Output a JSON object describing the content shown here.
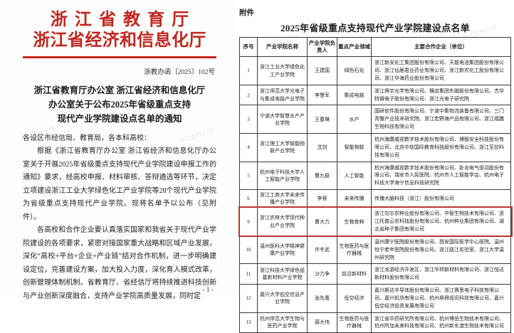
{
  "colors": {
    "header_red": "#c2271e",
    "highlight_box_red": "#bd342c"
  },
  "watermark": {
    "text": "浙江农林大学"
  },
  "left_page": {
    "header_line1": "浙江省教育厅",
    "header_line2": "浙江省经济和信息化厅",
    "doc_number": "浙教办函〔2025〕102号",
    "title_lines": [
      "浙江省教育厅办公室 浙江省经济和信息化厅",
      "办公室关于公布2025年省级重点支持",
      "现代产业学院建设点名单的通知"
    ],
    "salutation": "各设区市经信局、教育局，各本科高校：",
    "paragraphs": [
      "根据《浙江省教育厅办公室 浙江省经济和信息化厅办公室关于开展2025年省级重点支持现代产业学院建设申报工作的通知》要求，经高校申报、材料审核、答辩遴选等环节，决定立项建设浙江工业大学绿色化工产业学院等28个现代产业学院为省级重点支持现代产业学院。现将名单予以公布（见附件）。",
      "各高校和合作企业要认真落实国家和我省关于现代产业学院建设的各项要求，紧密对接国家重大战略和区域产业发展，深化“高校+平台+企业+产业链”结对合作机制，进一步明确建设定位，完善建设方案，加大投入力度，深化育人模式改革，创新管理体制机制。省教育厅、省经信厅将持续推进科技创新与产业创新深度融合，支持产业学院高质量发展，同时定"
    ],
    "page_number": "- 1 -"
  },
  "right_page": {
    "attachment_label": "附件",
    "table_title": "2025年省级重点支持现代产业学院建设点名单",
    "columns": [
      "序号",
      "产业学院名称",
      "产业学院负责人",
      "重点产业领域",
      "主要合作企业（单位）"
    ],
    "rows": [
      {
        "no": "1",
        "college": "浙江工业大学绿色化工产业学院",
        "leader": "王建国",
        "field": "绿色石化",
        "partners": "浙江新安化工集团股份有限公司、天能电池集团股份有限公司、浙江仙居君业药业有限公司、浙江新农化工股份有限公司、浙江华海药业股份有限公司",
        "highlight": false
      },
      {
        "no": "2",
        "college": "浙江师范大学光电子与集成电路产业学院",
        "leader": "李慧军",
        "field": "集成电路",
        "partners": "浙江舜宇光学有限公司、横店集团东磁股份有限公司、杰华特微电子股份有限公司、浙江光电子研究院",
        "highlight": false
      },
      {
        "no": "3",
        "college": "宁波大学智慧水产产业学院",
        "leader": "王春琳",
        "field": "水产",
        "partners": "国研软件股份有限公司、宁波中集物流装备有限公司、三门青蟹产业技术研究院、浙江宏野海产品有限公司、浙江福膳生物科技有限公司",
        "highlight": false
      },
      {
        "no": "4",
        "college": "浙江理工大学智能物联产业学院",
        "leader": "沈剑",
        "field": "智能物联",
        "partners": "杭州海康威视数字技术股份有限公司、博智安全科技股份有限公司、北京中软国际教育科技股份有限公司、浙江至控科技有限公司",
        "highlight": false
      },
      {
        "no": "5",
        "college": "杭州电子科技大学人工智能产业学院",
        "leader": "曹九稳",
        "field": "人工智能",
        "partners": "杭州海康威视数字技术股份有限公司、卧龙电气驱动股份有限公司、瑞安市人民医院、杭州市人工智能学会、杭州电子科技大学海宁信息科技研究院",
        "highlight": false
      },
      {
        "no": "6",
        "college": "浙江工商大学未来传播产业学院",
        "leader": "李蓉",
        "field": "未来传播",
        "partners": "传播大脑科技（浙江）股份有限公司",
        "highlight": false
      },
      {
        "no": "9",
        "college": "浙江农林大学现代种业产业学院",
        "leader": "曹大力",
        "field": "生物育种",
        "partners": "浙江勿忘农种业股份有限公司、华智生物技术有限公司、浙江托普云农科技股份有限公司、杭州种业集团有限公司、湖北省种子集团有限公司",
        "highlight": true
      },
      {
        "no": "10",
        "college": "温州医科大学精神健康产业学院",
        "leader": "许冬武",
        "field": "生物医药与医疗器械",
        "partners": "温州康宁医院股份有限公司、西安国际医学中心医院、温州怡宁老年医院股份有限公司、浙江瓯江实验室、浙江大学温州研究院",
        "highlight": false
      },
      {
        "no": "11",
        "college": "浙江科技大学绿色纸基新材料产业学院",
        "leader": "沙力争",
        "field": "前沿新材料",
        "partners": "浙江龙游经济开发区、浙江华邦新材料有限公司、浙江恒达新材料股份有限公司",
        "highlight": false
      },
      {
        "no": "12",
        "college": "嘉兴大学低空信息产业学院",
        "leader": "张先凰",
        "field": "低空经济",
        "partners": "嘉兴斯达半导体股份有限公司、浙江赛思电子科技有限公司、嘉兴机场有限公司、杭州昊舜视讯科技有限公司、嘉兴低空经济投资发展有限公司",
        "highlight": false
      },
      {
        "no": "13",
        "college": "杭州师范大学生物与医药产业学院",
        "leader": "薛大伟",
        "field": "生物医药与医疗器械",
        "partners": "浙江省中药研究所有限公司、杭州博岳生物技术有限公司、杭州所加未来科技有限公司、杭州新东澳生物技术有限公司",
        "highlight": false
      }
    ]
  }
}
